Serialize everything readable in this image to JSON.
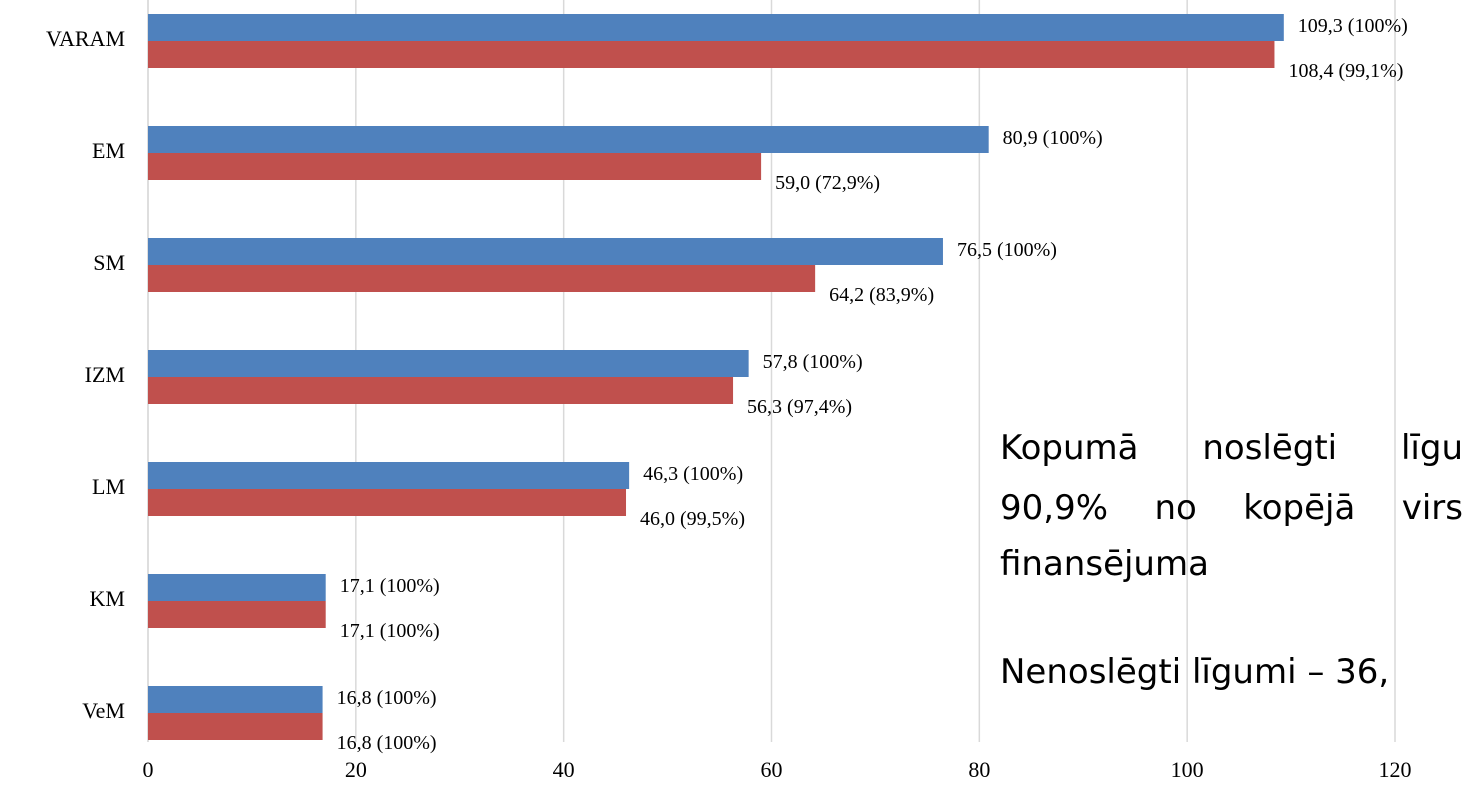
{
  "chart_data": {
    "type": "bar",
    "orientation": "horizontal",
    "categories": [
      "VARAM",
      "EM",
      "SM",
      "IZM",
      "LM",
      "KM",
      "VeM"
    ],
    "series": [
      {
        "color": "#4f81bd",
        "values": [
          109.3,
          80.9,
          76.5,
          57.8,
          46.3,
          17.1,
          16.8
        ],
        "value_labels": [
          "109,3 (100%)",
          "80,9 (100%)",
          "76,5 (100%)",
          "57,8 (100%)",
          "46,3 (100%)",
          "17,1 (100%)",
          "16,8 (100%)"
        ]
      },
      {
        "color": "#c0504d",
        "values": [
          108.4,
          59.0,
          64.2,
          56.3,
          46.0,
          17.1,
          16.8
        ],
        "value_labels": [
          "108,4 (99,1%)",
          "59,0 (72,9%)",
          "64,2 (83,9%)",
          "56,3 (97,4%)",
          "46,0 (99,5%)",
          "17,1 (100%)",
          "16,8 (100%)"
        ]
      }
    ],
    "xlim": [
      0,
      120
    ],
    "xticks": [
      0,
      20,
      40,
      60,
      80,
      100,
      120
    ],
    "grid": true,
    "annotations": [
      "Kopumā noslēgti līgu",
      "90,9% no kopējā virs",
      "finansējuma",
      "Nenoslēgti līgumi – 36,"
    ]
  }
}
